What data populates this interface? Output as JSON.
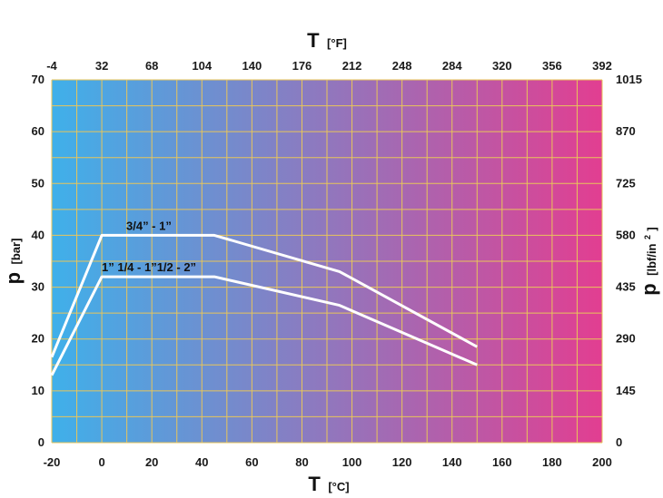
{
  "chart_data": {
    "type": "line",
    "x_axis_bottom": {
      "label_main": "T",
      "label_unit": "[°C]",
      "range": [
        -20,
        200
      ],
      "ticks": [
        "-20",
        "0",
        "20",
        "40",
        "60",
        "80",
        "100",
        "120",
        "140",
        "160",
        "180",
        "200"
      ]
    },
    "x_axis_top": {
      "label_main": "T",
      "label_unit": "[°F]",
      "ticks": [
        "-4",
        "32",
        "68",
        "104",
        "140",
        "176",
        "212",
        "248",
        "284",
        "320",
        "356",
        "392"
      ]
    },
    "y_axis_left": {
      "label_main": "p",
      "label_unit": "[bar]",
      "range": [
        0,
        70
      ],
      "ticks": [
        "0",
        "10",
        "20",
        "30",
        "40",
        "50",
        "60",
        "70"
      ]
    },
    "y_axis_right": {
      "label_main": "p",
      "label_unit": "[lbf/in",
      "label_unit_sup": "2",
      "label_unit_end": "]",
      "ticks": [
        "0",
        "145",
        "290",
        "435",
        "580",
        "725",
        "870",
        "1015"
      ]
    },
    "grid": true,
    "background_gradient": {
      "from": "#3fb0ea",
      "to": "#e23e91"
    },
    "grid_color": "#e8c55a",
    "series": [
      {
        "name": "3/4” - 1”",
        "color": "#ffffff",
        "x": [
          -20,
          0,
          45,
          95,
          150
        ],
        "y": [
          16.5,
          40,
          40,
          33,
          18.5
        ]
      },
      {
        "name": "1” 1/4 - 1”1/2 - 2”",
        "color": "#ffffff",
        "x": [
          -20,
          0,
          45,
          95,
          150
        ],
        "y": [
          13,
          32,
          32,
          26.5,
          15
        ]
      }
    ]
  }
}
